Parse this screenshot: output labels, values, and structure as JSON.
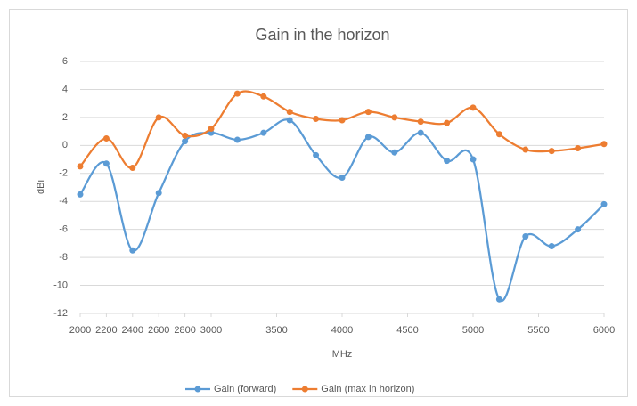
{
  "chart_data": {
    "type": "line",
    "title": "Gain in the horizon",
    "x_label": "MHz",
    "y_label": "dBi",
    "x": [
      2000,
      2200,
      2400,
      2600,
      2800,
      3000,
      3200,
      3400,
      3600,
      3800,
      4000,
      4200,
      4400,
      4600,
      4800,
      5000,
      5200,
      5400,
      5600,
      5800,
      6000
    ],
    "series": [
      {
        "name": "Gain (forward)",
        "color": "#5b9bd5",
        "values": [
          -3.5,
          -1.3,
          -7.5,
          -3.4,
          0.3,
          0.9,
          0.4,
          0.9,
          1.8,
          -0.7,
          -2.3,
          0.6,
          -0.5,
          0.9,
          -1.1,
          -1.0,
          -11.0,
          -6.5,
          -7.2,
          -6.0,
          -4.2
        ]
      },
      {
        "name": "Gain (max in horizon)",
        "color": "#ed7d31",
        "values": [
          -1.5,
          0.5,
          -1.6,
          2.0,
          0.7,
          1.2,
          3.7,
          3.5,
          2.4,
          1.9,
          1.8,
          2.4,
          2.0,
          1.7,
          1.6,
          2.7,
          0.8,
          -0.3,
          -0.4,
          -0.2,
          0.1
        ]
      }
    ],
    "xlim": [
      2000,
      6000
    ],
    "xticks": [
      2000,
      2200,
      2400,
      2600,
      2800,
      3000,
      3500,
      4000,
      4500,
      5000,
      5500,
      6000
    ],
    "ylim": [
      -12,
      6
    ],
    "yticks": [
      -12,
      -10,
      -8,
      -6,
      -4,
      -2,
      0,
      2,
      4,
      6
    ],
    "grid": true,
    "smooth": true,
    "legend": "bottom"
  }
}
